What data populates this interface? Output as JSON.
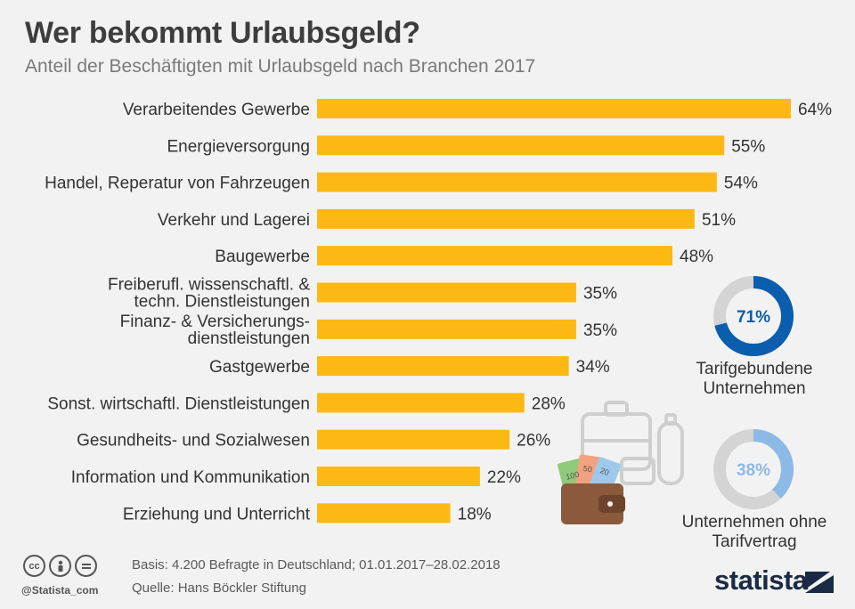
{
  "title": "Wer bekommt Urlaubsgeld?",
  "subtitle": "Anteil der Beschäftigten mit Urlaubsgeld nach Branchen 2017",
  "chart_data": {
    "type": "bar",
    "orientation": "horizontal",
    "title": "Wer bekommt Urlaubsgeld?",
    "subtitle": "Anteil der Beschäftigten mit Urlaubsgeld nach Branchen 2017",
    "unit": "%",
    "xlim": [
      0,
      64
    ],
    "categories": [
      [
        "Verarbeitendes Gewerbe"
      ],
      [
        "Energieversorgung"
      ],
      [
        "Handel, Reperatur von Fahrzeugen"
      ],
      [
        "Verkehr und Lagerei"
      ],
      [
        "Baugewerbe"
      ],
      [
        "Freiberufl. wissenschaftl. &",
        "techn. Dienstleistungen"
      ],
      [
        "Finanz- & Versicherungs-",
        "dienstleistungen"
      ],
      [
        "Gastgewerbe"
      ],
      [
        "Sonst. wirtschaftl. Dienstleistungen"
      ],
      [
        "Gesundheits- und Sozialwesen"
      ],
      [
        "Information und Kommunikation"
      ],
      [
        "Erziehung und Unterricht"
      ]
    ],
    "values": [
      64,
      55,
      54,
      51,
      48,
      35,
      35,
      34,
      28,
      26,
      22,
      18
    ],
    "value_labels": [
      "64%",
      "55%",
      "54%",
      "51%",
      "48%",
      "35%",
      "35%",
      "34%",
      "28%",
      "26%",
      "22%",
      "18%"
    ],
    "bar_color": "#fdb813",
    "donuts": [
      {
        "value": 71,
        "label_value": "71%",
        "label": [
          "Tarifgebundene",
          "Unternehmen"
        ],
        "color": "#0b5dae",
        "text_color": "#0b5dae"
      },
      {
        "value": 38,
        "label_value": "38%",
        "label": [
          "Unternehmen ohne",
          "Tarifvertrag"
        ],
        "color": "#8db9e6",
        "text_color": "#8db9e6"
      }
    ],
    "donut_track_color": "#d4d4d4"
  },
  "footer": {
    "basis": "Basis: 4.200 Befragte in Deutschland; 01.01.2017–28.02.2018",
    "source": "Quelle: Hans Böckler Stiftung",
    "handle": "@Statista_com",
    "brand": "statista"
  },
  "illustration": {
    "banknote_labels": [
      "100",
      "50",
      "20"
    ],
    "icons": [
      "suitcase-icon",
      "wallet-icon",
      "banknotes-icon",
      "bottle-icon"
    ]
  }
}
